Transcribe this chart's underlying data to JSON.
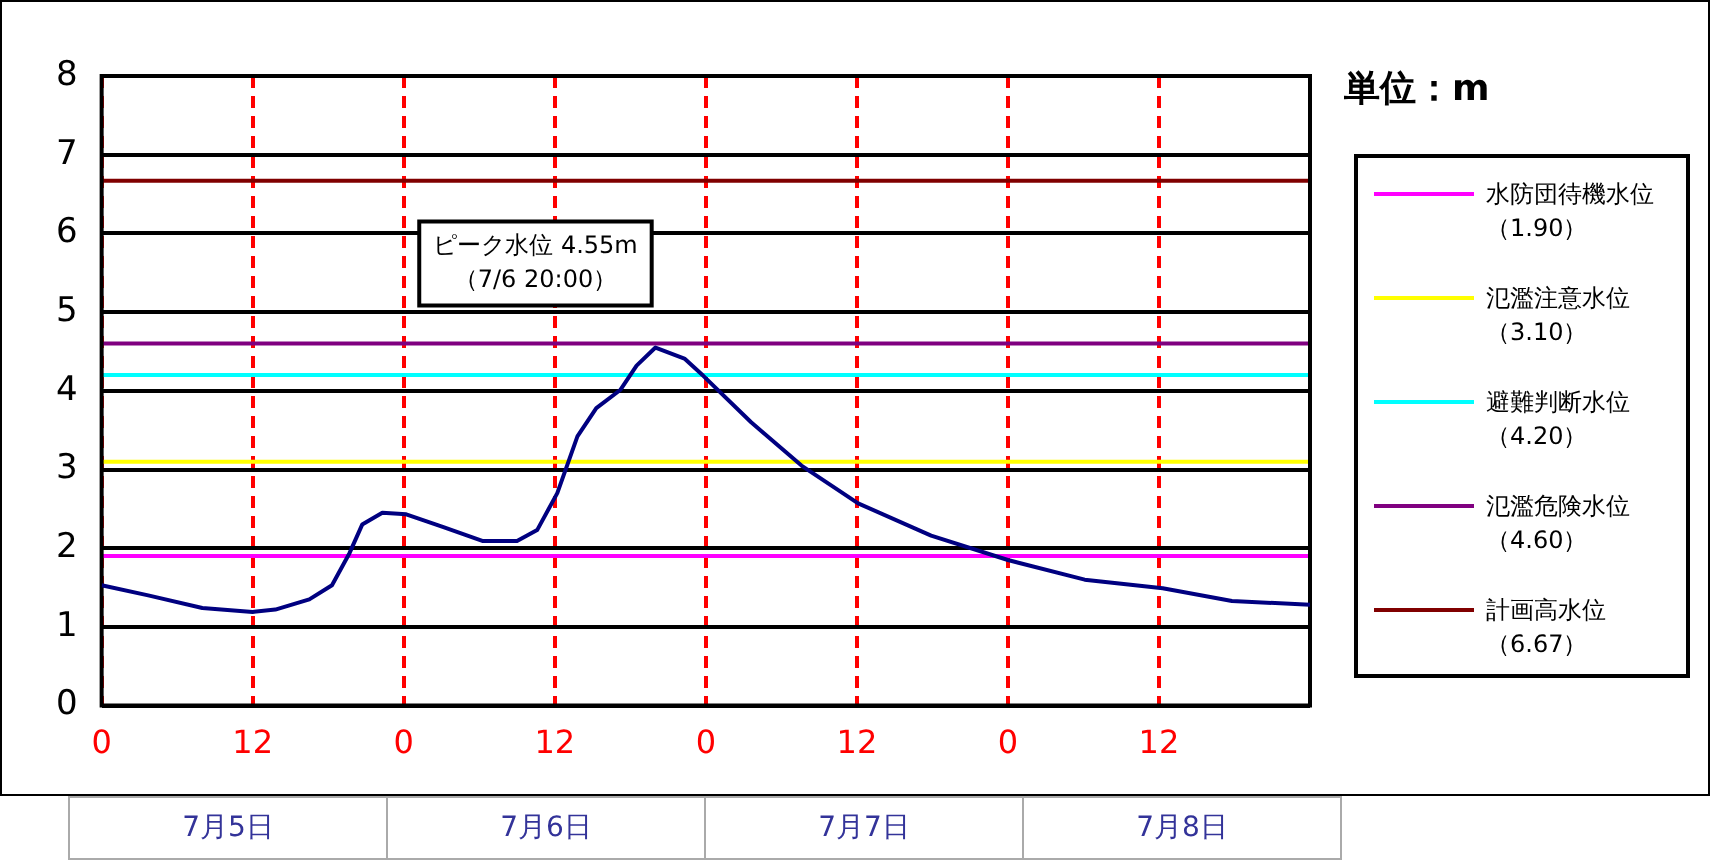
{
  "chart_data": {
    "type": "line",
    "x": [
      "--07-05T00:00",
      "--07-05T03:42",
      "--07-05T08:00",
      "--07-05T12:00",
      "--07-05T13:48",
      "--07-05T16:30",
      "--07-05T18:18",
      "--07-05T19:42",
      "--07-05T20:42",
      "--07-05T22:18",
      "--07-06T00:12",
      "--07-06T03:06",
      "--07-06T06:18",
      "--07-06T09:00",
      "--07-06T10:36",
      "--07-06T12:12",
      "--07-06T13:48",
      "--07-06T15:18",
      "--07-06T17:12",
      "--07-06T18:30",
      "--07-06T20:00",
      "--07-06T22:18",
      "--07-06T23:48",
      "--07-07T03:36",
      "--07-07T07:36",
      "--07-07T12:06",
      "--07-07T17:54",
      "--07-08T00:00",
      "--07-08T06:06",
      "--07-08T12:18",
      "--07-08T17:48",
      "--07-09T00:00"
    ],
    "series": [
      {
        "color": "#000080",
        "values": [
          1.53,
          1.4,
          1.24,
          1.19,
          1.22,
          1.35,
          1.53,
          1.94,
          2.3,
          2.45,
          2.43,
          2.27,
          2.09,
          2.09,
          2.23,
          2.7,
          3.42,
          3.78,
          4.01,
          4.32,
          4.55,
          4.41,
          4.19,
          3.6,
          3.05,
          2.57,
          2.16,
          1.85,
          1.6,
          1.49,
          1.33,
          1.28
        ]
      }
    ],
    "xlim": [
      "--07-05T00:00",
      "--07-09T00:00"
    ],
    "xticks": [
      {
        "value": "--07-05T00:00",
        "label": "0"
      },
      {
        "value": "--07-05T12:00",
        "label": "12"
      },
      {
        "value": "--07-06T00:00",
        "label": "0"
      },
      {
        "value": "--07-06T12:00",
        "label": "12"
      },
      {
        "value": "--07-07T00:00",
        "label": "0"
      },
      {
        "value": "--07-07T12:00",
        "label": "12"
      },
      {
        "value": "--07-08T00:00",
        "label": "0"
      },
      {
        "value": "--07-08T12:00",
        "label": "12"
      },
      {
        "value": "--07-09T00:00",
        "label": null
      }
    ],
    "ylim": [
      0,
      8
    ],
    "yticks": [
      0,
      1,
      2,
      3,
      4,
      5,
      6,
      7,
      8
    ],
    "grid": true,
    "legend": "right",
    "legend_title": "単位：m",
    "ref_lines": [
      {
        "axis": "y",
        "value": 1.9,
        "label": "水防団待機水位（1.90）",
        "color": "#ff00ff"
      },
      {
        "axis": "y",
        "value": 3.1,
        "label": "氾濫注意水位（3.10）",
        "color": "#ffff00"
      },
      {
        "axis": "y",
        "value": 4.2,
        "label": "避難判断水位（4.20）",
        "color": "#00ffff"
      },
      {
        "axis": "y",
        "value": 4.6,
        "label": "氾濫危険水位（4.60）",
        "color": "#800080"
      },
      {
        "axis": "y",
        "value": 6.67,
        "label": "計画高水位（6.67）",
        "color": "#800000"
      }
    ],
    "annotations": [
      {
        "text": "ピーク水位 4.55m（7/6 20:00）",
        "x": "--07-06T20:00",
        "y": 4.55
      },
      "7月5日",
      "7月6日",
      "7月7日",
      "7月8日"
    ]
  }
}
